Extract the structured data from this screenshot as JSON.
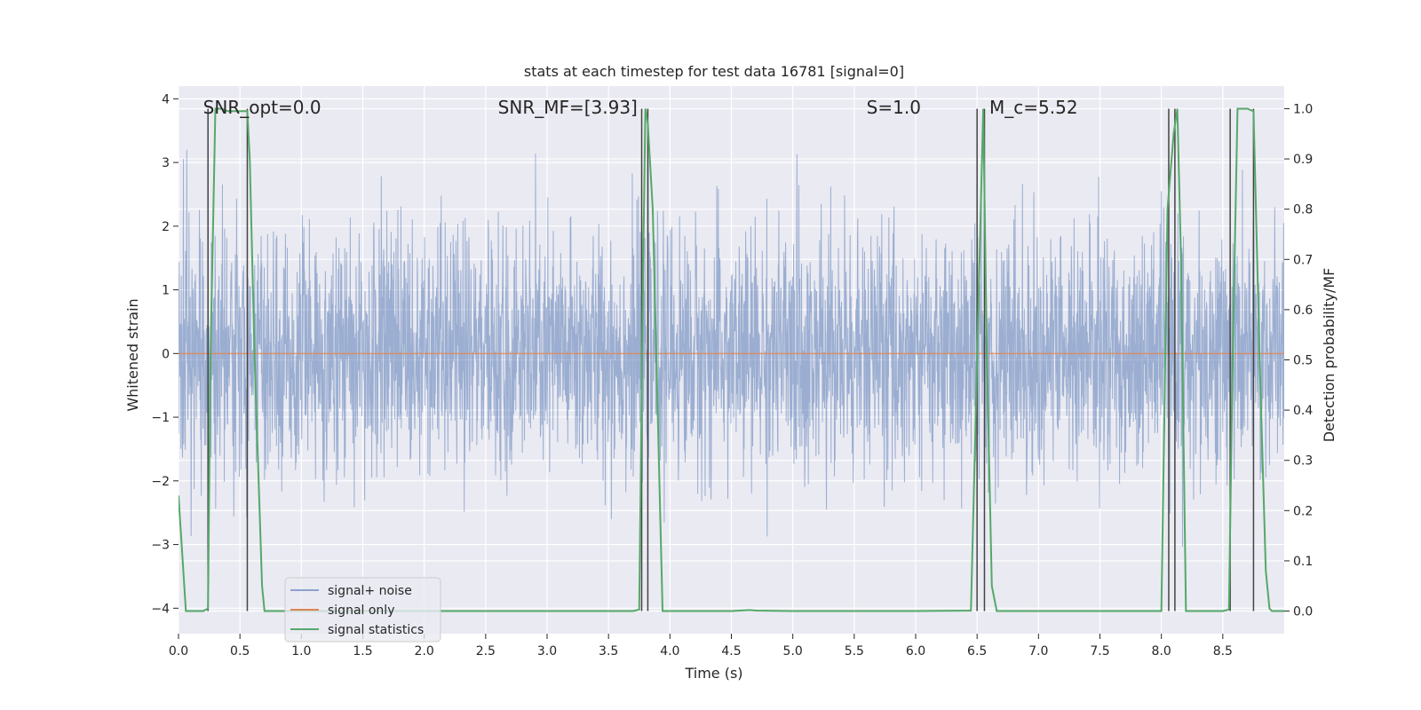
{
  "chart_data": {
    "type": "line",
    "title": "stats at each timestep for test data 16781 [signal=0]",
    "xlabel": "Time (s)",
    "ylabel": "Whitened strain",
    "y2label": "Detection probability/MF",
    "xlim": [
      0.0,
      9.0
    ],
    "ylim": [
      -4.4,
      4.2
    ],
    "y2lim": [
      -0.045,
      1.045
    ],
    "x_ticks": [
      "0.0",
      "0.5",
      "1.0",
      "1.5",
      "2.0",
      "2.5",
      "3.0",
      "3.5",
      "4.0",
      "4.5",
      "5.0",
      "5.5",
      "6.0",
      "6.5",
      "7.0",
      "7.5",
      "8.0",
      "8.5"
    ],
    "x_tick_values": [
      0.0,
      0.5,
      1.0,
      1.5,
      2.0,
      2.5,
      3.0,
      3.5,
      4.0,
      4.5,
      5.0,
      5.5,
      6.0,
      6.5,
      7.0,
      7.5,
      8.0,
      8.5
    ],
    "y_ticks": [
      "−4",
      "−3",
      "−2",
      "−1",
      "0",
      "1",
      "2",
      "3",
      "4"
    ],
    "y_tick_values": [
      -4,
      -3,
      -2,
      -1,
      0,
      1,
      2,
      3,
      4
    ],
    "y2_ticks": [
      "0.0",
      "0.1",
      "0.2",
      "0.3",
      "0.4",
      "0.5",
      "0.6",
      "0.7",
      "0.8",
      "0.9",
      "1.0"
    ],
    "y2_tick_values": [
      0.0,
      0.1,
      0.2,
      0.3,
      0.4,
      0.5,
      0.6,
      0.7,
      0.8,
      0.9,
      1.0
    ],
    "grid": true,
    "legend_position": "bottom-left",
    "annotations": [
      {
        "text": "SNR_opt=0.0",
        "x": 0.2,
        "y": 3.85
      },
      {
        "text": "SNR_MF=[3.93]",
        "x": 2.6,
        "y": 3.85
      },
      {
        "text": "S=1.0",
        "x": 5.6,
        "y": 3.85
      },
      {
        "text": "M_c=5.52",
        "x": 6.6,
        "y": 3.85
      }
    ],
    "series": [
      {
        "name": "signal+ noise",
        "color": "#4c72b0",
        "axis": "left",
        "noise": true,
        "x_range": [
          0.0,
          9.0
        ],
        "typical_amplitude": 1.6,
        "max_value": 3.3,
        "min_value": -3.2
      },
      {
        "name": "signal only",
        "color": "#dd8452",
        "axis": "left",
        "x": [
          0.0,
          9.0
        ],
        "y": [
          0.0,
          0.0
        ]
      },
      {
        "name": "signal statistics",
        "color": "#55a868",
        "axis": "right",
        "x": [
          0.0,
          0.06,
          0.1,
          0.15,
          0.2,
          0.24,
          0.26,
          0.3,
          0.35,
          0.4,
          0.5,
          0.56,
          0.58,
          0.62,
          0.68,
          0.7,
          1.0,
          2.0,
          3.0,
          3.5,
          3.7,
          3.75,
          3.78,
          3.8,
          3.82,
          3.86,
          3.94,
          4.0,
          4.5,
          4.65,
          4.7,
          5.0,
          6.0,
          6.45,
          6.5,
          6.55,
          6.58,
          6.62,
          6.66,
          6.7,
          7.0,
          7.3,
          7.5,
          8.0,
          8.05,
          8.1,
          8.13,
          8.16,
          8.2,
          8.25,
          8.5,
          8.55,
          8.58,
          8.62,
          8.7,
          8.75,
          8.8,
          8.85,
          8.88,
          8.9,
          9.0
        ],
        "y": [
          0.23,
          0.0,
          0.0,
          0.0,
          0.0,
          0.005,
          0.5,
          1.0,
          1.0,
          0.995,
          0.995,
          0.995,
          0.9,
          0.5,
          0.05,
          0.0,
          0.0,
          0.0,
          0.0,
          0.0,
          0.0,
          0.003,
          0.65,
          1.0,
          0.97,
          0.8,
          0.0,
          0.0,
          0.0,
          0.002,
          0.001,
          0.0,
          0.0,
          0.001,
          0.5,
          1.0,
          0.5,
          0.05,
          0.0,
          0.0,
          0.0,
          0.0,
          0.0,
          0.0,
          0.8,
          0.95,
          1.0,
          0.7,
          0.0,
          0.0,
          0.0,
          0.003,
          0.5,
          1.0,
          1.0,
          0.995,
          0.5,
          0.08,
          0.005,
          0.0,
          0.0
        ]
      }
    ],
    "vertical_lines": [
      0.24,
      0.56,
      3.77,
      3.82,
      6.5,
      6.56,
      8.06,
      8.11,
      8.56,
      8.75
    ],
    "vertical_line_color": "#444444"
  }
}
